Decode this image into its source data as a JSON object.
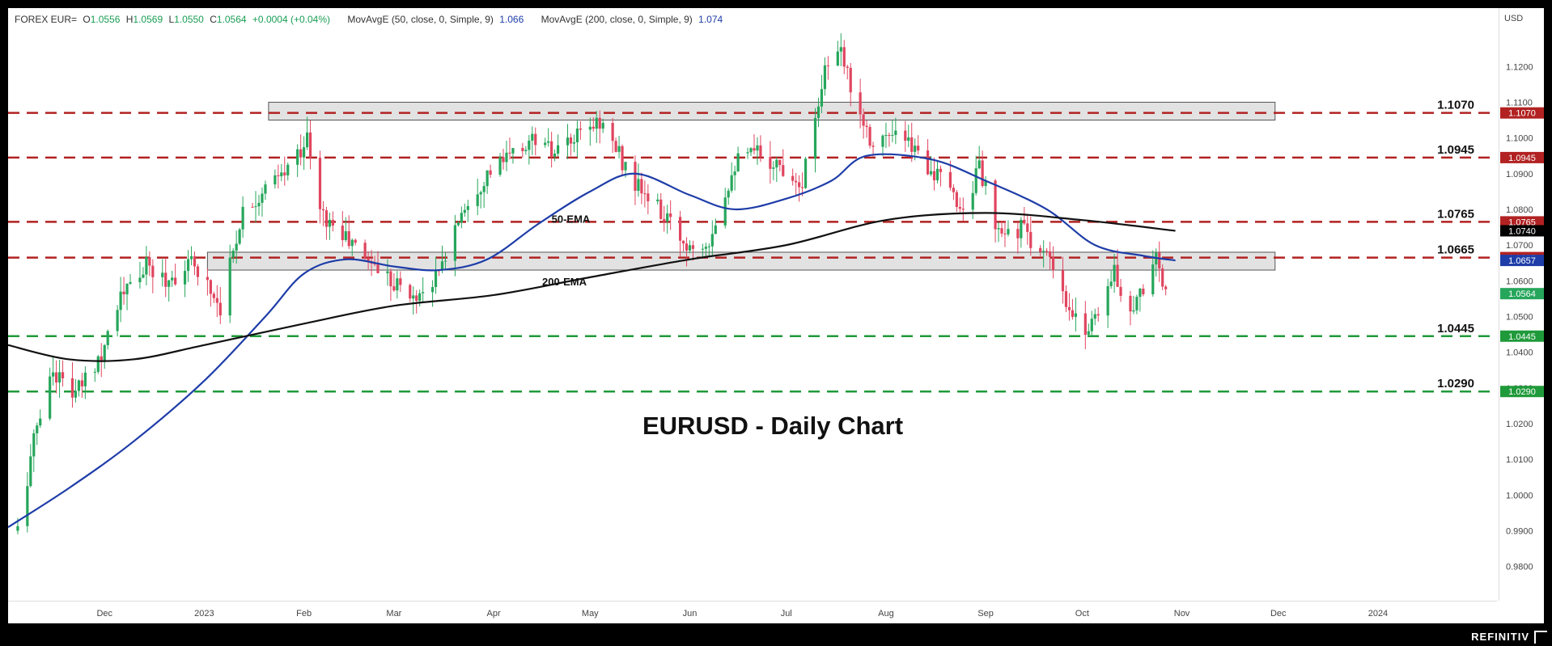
{
  "header": {
    "symbol": "FOREX EUR=",
    "o_label": "O",
    "o_value": "1.0556",
    "h_label": "H",
    "h_value": "1.0569",
    "l_label": "L",
    "l_value": "1.0550",
    "c_label": "C",
    "c_value": "1.0564",
    "change": "+0.0004 (+0.04%)",
    "ma50_label": "MovAvgE (50, close, 0, Simple, 9)",
    "ma50_value": "1.066",
    "ma200_label": "MovAvgE (200, close, 0, Simple, 9)",
    "ma200_value": "1.074"
  },
  "axis_unit": "USD",
  "brand": "REFINITIV",
  "colors": {
    "up": "#26a65b",
    "down": "#e0455f",
    "resistance": "#b22222",
    "support": "#1f9a3a",
    "ema50": "#1e3da8",
    "ema200": "#111111",
    "zone": "#d8d8d8"
  },
  "chart_data": {
    "type": "line",
    "title": "EURUSD - Daily Chart",
    "ylim": [
      0.972,
      1.135
    ],
    "y_ticks": [
      "1.1200",
      "1.1100",
      "1.1000",
      "1.0900",
      "1.0800",
      "1.0700",
      "1.0600",
      "1.0500",
      "1.0400",
      "1.0300",
      "1.0200",
      "1.0100",
      "1.0000",
      "0.9900",
      "0.9800"
    ],
    "x_ticks": [
      "Dec",
      "2023",
      "Feb",
      "Mar",
      "Apr",
      "May",
      "Jun",
      "Jul",
      "Aug",
      "Sep",
      "Oct",
      "Nov",
      "Dec",
      "2024"
    ],
    "x_tick_dates": [
      "2022-12-01",
      "2023-01-01",
      "2023-02-01",
      "2023-03-01",
      "2023-04-01",
      "2023-05-01",
      "2023-06-01",
      "2023-07-01",
      "2023-08-01",
      "2023-09-01",
      "2023-10-01",
      "2023-11-01",
      "2023-12-01",
      "2024-01-01"
    ],
    "xlim": [
      "2022-11-01",
      "2024-02-07"
    ],
    "levels": [
      {
        "label": "1.1070",
        "value": 1.107,
        "kind": "resistance"
      },
      {
        "label": "1.0945",
        "value": 1.0945,
        "kind": "resistance"
      },
      {
        "label": "1.0765",
        "value": 1.0765,
        "kind": "resistance"
      },
      {
        "label": "1.0665",
        "value": 1.0665,
        "kind": "resistance"
      },
      {
        "label": "1.0445",
        "value": 1.0445,
        "kind": "support"
      },
      {
        "label": "1.0290",
        "value": 1.029,
        "kind": "support"
      }
    ],
    "zones": [
      {
        "start": "2023-01-02",
        "end": "2023-11-30",
        "y0": 1.063,
        "y1": 1.068
      },
      {
        "start": "2023-01-21",
        "end": "2023-11-30",
        "y0": 1.105,
        "y1": 1.11
      }
    ],
    "price_tags": [
      {
        "label": "1.1070",
        "value": 1.107,
        "color": "#b22222"
      },
      {
        "label": "1.0945",
        "value": 1.0945,
        "color": "#b22222"
      },
      {
        "label": "1.0765",
        "value": 1.0765,
        "color": "#b22222"
      },
      {
        "label": "1.0740",
        "value": 1.074,
        "color": "#000000"
      },
      {
        "label": "1.0665",
        "value": 1.0665,
        "color": "#b22222"
      },
      {
        "label": "1.0657",
        "value": 1.0657,
        "color": "#1e3da8"
      },
      {
        "label": "1.0564",
        "value": 1.0564,
        "color": "#26a65b"
      },
      {
        "label": "1.0445",
        "value": 1.0445,
        "color": "#1f9a3a"
      },
      {
        "label": "1.0290",
        "value": 1.029,
        "color": "#1f9a3a"
      }
    ],
    "annotations": [
      {
        "text": "50-EMA",
        "date": "2023-04-25",
        "value": 1.0762
      },
      {
        "text": "200-EMA",
        "date": "2023-04-23",
        "value": 1.0587
      }
    ],
    "price_anchors": [
      [
        "2022-11-04",
        0.99
      ],
      [
        "2022-11-10",
        1.02
      ],
      [
        "2022-11-15",
        1.035
      ],
      [
        "2022-11-22",
        1.028
      ],
      [
        "2022-11-30",
        1.04
      ],
      [
        "2022-12-05",
        1.054
      ],
      [
        "2022-12-14",
        1.064
      ],
      [
        "2022-12-20",
        1.06
      ],
      [
        "2022-12-29",
        1.065
      ],
      [
        "2023-01-06",
        1.053
      ],
      [
        "2023-01-13",
        1.08
      ],
      [
        "2023-01-26",
        1.09
      ],
      [
        "2023-02-02",
        1.1
      ],
      [
        "2023-02-06",
        1.079
      ],
      [
        "2023-02-14",
        1.072
      ],
      [
        "2023-02-21",
        1.066
      ],
      [
        "2023-03-01",
        1.06
      ],
      [
        "2023-03-07",
        1.055
      ],
      [
        "2023-03-15",
        1.062
      ],
      [
        "2023-03-22",
        1.08
      ],
      [
        "2023-03-30",
        1.09
      ],
      [
        "2023-04-14",
        1.1
      ],
      [
        "2023-04-20",
        1.095
      ],
      [
        "2023-05-04",
        1.105
      ],
      [
        "2023-05-15",
        1.087
      ],
      [
        "2023-05-22",
        1.08
      ],
      [
        "2023-05-31",
        1.07
      ],
      [
        "2023-06-07",
        1.072
      ],
      [
        "2023-06-15",
        1.093
      ],
      [
        "2023-06-22",
        1.096
      ],
      [
        "2023-07-06",
        1.088
      ],
      [
        "2023-07-13",
        1.12
      ],
      [
        "2023-07-18",
        1.123
      ],
      [
        "2023-07-27",
        1.1
      ],
      [
        "2023-08-04",
        1.1
      ],
      [
        "2023-08-10",
        1.097
      ],
      [
        "2023-08-18",
        1.088
      ],
      [
        "2023-08-25",
        1.08
      ],
      [
        "2023-08-30",
        1.092
      ],
      [
        "2023-09-05",
        1.072
      ],
      [
        "2023-09-12",
        1.075
      ],
      [
        "2023-09-21",
        1.065
      ],
      [
        "2023-09-27",
        1.05
      ],
      [
        "2023-10-03",
        1.047
      ],
      [
        "2023-10-11",
        1.062
      ],
      [
        "2023-10-16",
        1.052
      ],
      [
        "2023-10-20",
        1.058
      ],
      [
        "2023-10-24",
        1.068
      ],
      [
        "2023-10-26",
        1.056
      ],
      [
        "2023-10-28",
        1.0564
      ]
    ],
    "series": [
      {
        "name": "50-EMA",
        "color": "#1e3da8",
        "points": [
          [
            "2022-11-01",
            0.991
          ],
          [
            "2022-11-20",
            1.002
          ],
          [
            "2022-12-10",
            1.015
          ],
          [
            "2023-01-01",
            1.032
          ],
          [
            "2023-01-20",
            1.05
          ],
          [
            "2023-02-01",
            1.062
          ],
          [
            "2023-02-14",
            1.066
          ],
          [
            "2023-03-01",
            1.064
          ],
          [
            "2023-03-15",
            1.063
          ],
          [
            "2023-03-30",
            1.066
          ],
          [
            "2023-04-15",
            1.076
          ],
          [
            "2023-05-01",
            1.085
          ],
          [
            "2023-05-15",
            1.09
          ],
          [
            "2023-06-01",
            1.084
          ],
          [
            "2023-06-15",
            1.08
          ],
          [
            "2023-07-01",
            1.083
          ],
          [
            "2023-07-15",
            1.088
          ],
          [
            "2023-07-26",
            1.095
          ],
          [
            "2023-08-15",
            1.094
          ],
          [
            "2023-09-01",
            1.088
          ],
          [
            "2023-09-20",
            1.08
          ],
          [
            "2023-10-05",
            1.07
          ],
          [
            "2023-10-20",
            1.067
          ],
          [
            "2023-10-30",
            1.0657
          ]
        ]
      },
      {
        "name": "200-EMA",
        "color": "#111111",
        "points": [
          [
            "2022-11-01",
            1.042
          ],
          [
            "2022-11-20",
            1.038
          ],
          [
            "2022-12-10",
            1.038
          ],
          [
            "2023-01-01",
            1.042
          ],
          [
            "2023-02-01",
            1.048
          ],
          [
            "2023-03-01",
            1.053
          ],
          [
            "2023-04-01",
            1.056
          ],
          [
            "2023-05-01",
            1.061
          ],
          [
            "2023-06-01",
            1.066
          ],
          [
            "2023-07-01",
            1.07
          ],
          [
            "2023-08-01",
            1.077
          ],
          [
            "2023-09-01",
            1.079
          ],
          [
            "2023-10-01",
            1.077
          ],
          [
            "2023-10-30",
            1.074
          ]
        ]
      }
    ]
  }
}
